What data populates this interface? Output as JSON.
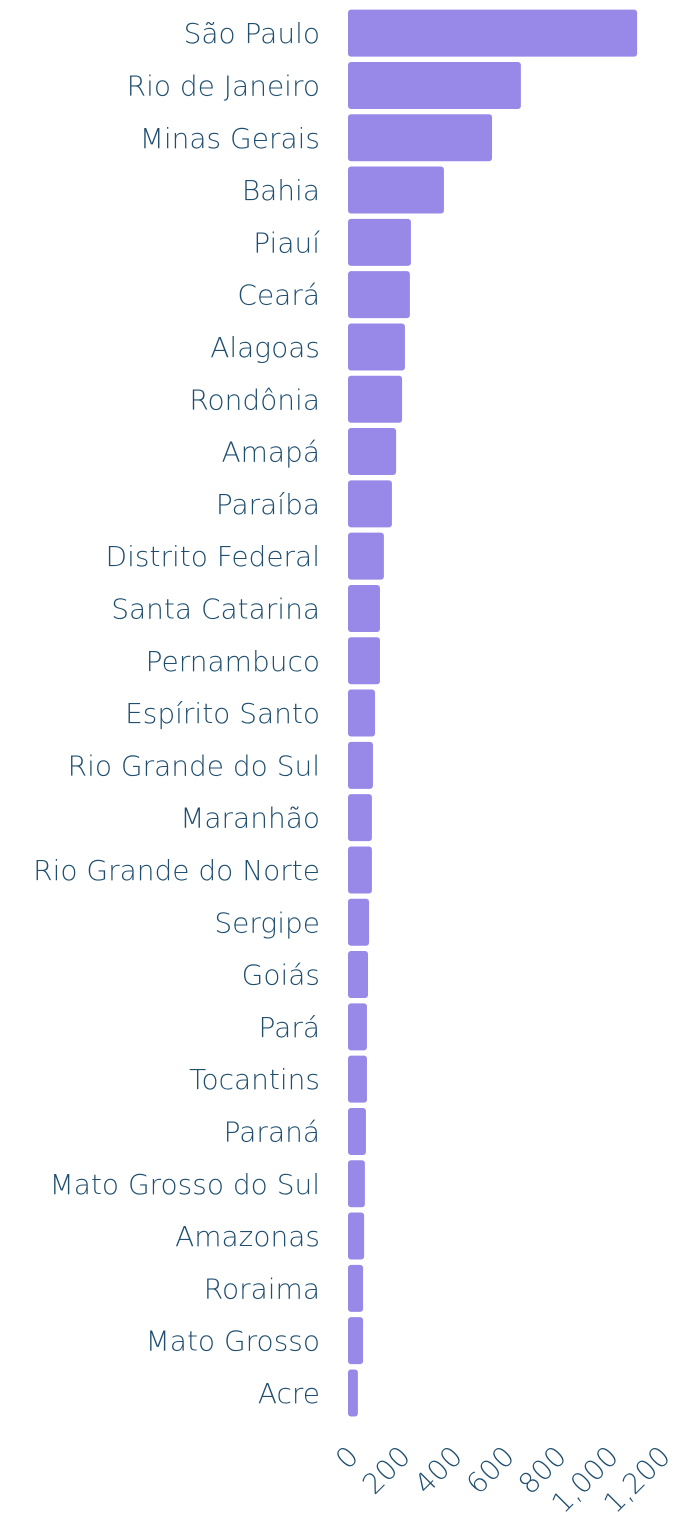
{
  "chart_data": {
    "type": "barh",
    "categories": [
      "São Paulo",
      "Rio de Janeiro",
      "Minas Gerais",
      "Bahia",
      "Piauí",
      "Ceará",
      "Alagoas",
      "Rondônia",
      "Amapá",
      "Paraíba",
      "Distrito Federal",
      "Santa Catarina",
      "Pernambuco",
      "Espírito Santo",
      "Rio Grande do Sul",
      "Maranhão",
      "Rio Grande do Norte",
      "Sergipe",
      "Goiás",
      "Pará",
      "Tocantins",
      "Paraná",
      "Mato Grosso do Sul",
      "Amazonas",
      "Roraima",
      "Mato Grosso",
      "Acre"
    ],
    "values": [
      1112,
      665,
      554,
      369,
      242,
      238,
      219,
      208,
      185,
      169,
      138,
      123,
      123,
      104,
      96,
      92,
      92,
      81,
      77,
      73,
      73,
      69,
      65,
      62,
      58,
      58,
      38
    ],
    "color": "#9889e8",
    "xlim": [
      0,
      1200
    ],
    "xticks": [
      0,
      200,
      400,
      600,
      800,
      {
        "value": 1000,
        "label": "1,000"
      },
      {
        "value": 1200,
        "label": "1,200"
      }
    ]
  }
}
